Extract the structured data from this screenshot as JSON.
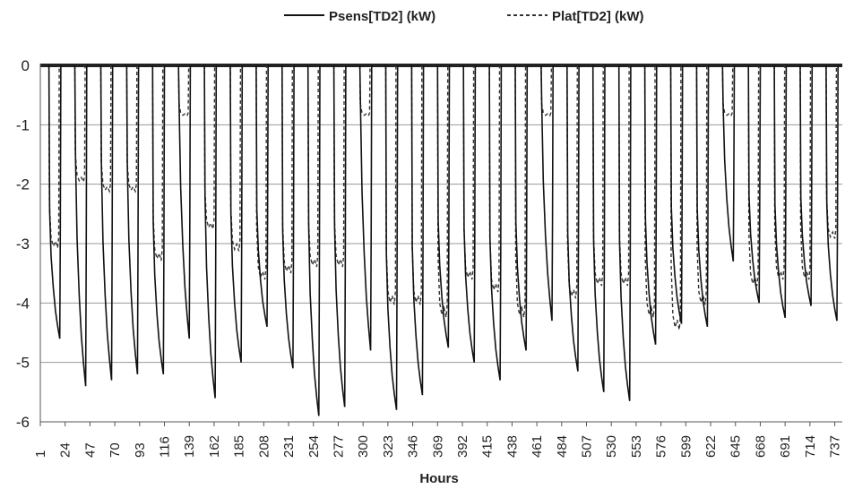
{
  "chart_data": {
    "type": "line",
    "title": "",
    "xlabel": "Hours",
    "ylabel": "",
    "ylim": [
      -6,
      0
    ],
    "xlim": [
      1,
      744
    ],
    "grid": true,
    "legend_position": "top-center",
    "y_ticks": [
      "0",
      "-1",
      "-2",
      "-3",
      "-4",
      "-5",
      "-6"
    ],
    "x_ticks": [
      "1",
      "24",
      "47",
      "70",
      "93",
      "116",
      "139",
      "162",
      "185",
      "208",
      "231",
      "254",
      "277",
      "300",
      "323",
      "346",
      "369",
      "392",
      "415",
      "438",
      "461",
      "484",
      "507",
      "530",
      "553",
      "576",
      "599",
      "622",
      "645",
      "668",
      "691",
      "714",
      "737"
    ],
    "series": [
      {
        "name": "Psens[TD2] (kW)",
        "style": "solid",
        "color": "#111111",
        "day_start_hour": [
          8,
          8,
          8,
          8,
          8,
          8,
          8,
          8,
          8,
          8,
          8,
          8,
          8,
          8,
          8,
          8,
          8,
          8,
          8,
          8,
          8,
          8,
          8,
          8,
          8,
          8,
          8,
          8,
          8,
          8,
          8
        ],
        "day_end_hour": [
          19,
          19,
          19,
          19,
          19,
          19,
          19,
          19,
          19,
          19,
          19,
          19,
          19,
          19,
          19,
          19,
          19,
          19,
          19,
          19,
          19,
          19,
          19,
          19,
          19,
          19,
          19,
          19,
          19,
          19,
          19
        ],
        "daily_min": [
          -4.6,
          -5.4,
          -5.3,
          -5.2,
          -5.2,
          -4.6,
          -5.6,
          -5.0,
          -4.4,
          -5.1,
          -5.9,
          -5.75,
          -4.8,
          -5.8,
          -5.55,
          -4.75,
          -5.0,
          -5.3,
          -4.8,
          -4.3,
          -5.15,
          -5.5,
          -5.65,
          -4.7,
          -4.35,
          -4.4,
          -3.3,
          -4.0,
          -4.25,
          -4.05,
          -4.3
        ]
      },
      {
        "name": "Plat[TD2] (kW)",
        "style": "dashed",
        "color": "#333333",
        "daily_plateau": [
          -2.9,
          -1.85,
          -2.0,
          -2.0,
          -3.1,
          -0.8,
          -2.6,
          -2.95,
          -3.4,
          -3.3,
          -3.2,
          -3.2,
          -0.8,
          -3.8,
          -3.8,
          -4.0,
          -3.4,
          -3.6,
          -4.0,
          -0.8,
          -3.7,
          -3.5,
          -3.5,
          -4.0,
          -4.2,
          -3.8,
          -0.8,
          -3.5,
          -3.4,
          -3.4,
          -2.75
        ]
      }
    ]
  }
}
